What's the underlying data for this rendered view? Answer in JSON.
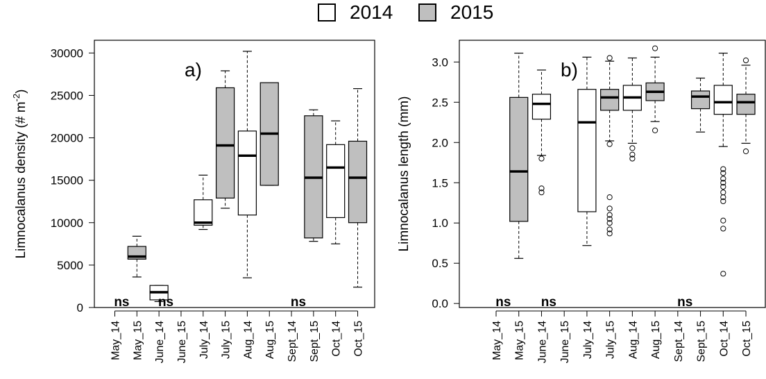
{
  "legend": {
    "items": [
      {
        "label": "2014",
        "color": "#ffffff"
      },
      {
        "label": "2015",
        "color": "#bfbfbf"
      }
    ]
  },
  "chart_data": [
    {
      "type": "box",
      "panel_label": "a)",
      "ylabel": "Limnocalanus density (# m",
      "ylabel_superscript": "-2",
      "ylabel_suffix": ")",
      "ylim": [
        0,
        31500
      ],
      "yticks": [
        0,
        5000,
        10000,
        15000,
        20000,
        25000,
        30000
      ],
      "categories": [
        "May_14",
        "May_15",
        "June_14",
        "June_15",
        "July_14",
        "July_15",
        "Aug_14",
        "Aug_15",
        "Sept_14",
        "Sept_15",
        "Oct_14",
        "Oct_15"
      ],
      "boxes": [
        {
          "category": "May_15",
          "year": "2015",
          "whisker_low": 3600,
          "q1": 5700,
          "median": 6000,
          "q3": 7200,
          "whisker_high": 8400
        },
        {
          "category": "June_14",
          "year": "2014",
          "whisker_low": 700,
          "q1": 900,
          "median": 1800,
          "q3": 2600,
          "whisker_high": 2600
        },
        {
          "category": "July_14",
          "year": "2014",
          "whisker_low": 9200,
          "q1": 9700,
          "median": 10000,
          "q3": 12700,
          "whisker_high": 15600
        },
        {
          "category": "July_15",
          "year": "2015",
          "whisker_low": 11700,
          "q1": 12900,
          "median": 19100,
          "q3": 25900,
          "whisker_high": 27900
        },
        {
          "category": "Aug_14",
          "year": "2014",
          "whisker_low": 3500,
          "q1": 10900,
          "median": 17900,
          "q3": 20800,
          "whisker_high": 30200
        },
        {
          "category": "Aug_15",
          "year": "2015",
          "whisker_low": 14400,
          "q1": 14400,
          "median": 20500,
          "q3": 26500,
          "whisker_high": 26500
        },
        {
          "category": "Sept_15",
          "year": "2015",
          "whisker_low": 7800,
          "q1": 8200,
          "median": 15300,
          "q3": 22600,
          "whisker_high": 23300
        },
        {
          "category": "Oct_14",
          "year": "2014",
          "whisker_low": 7500,
          "q1": 10600,
          "median": 16500,
          "q3": 19200,
          "whisker_high": 22000
        },
        {
          "category": "Oct_15",
          "year": "2015",
          "whisker_low": 2400,
          "q1": 10000,
          "median": 15300,
          "q3": 19600,
          "whisker_high": 25800
        }
      ],
      "outliers": [],
      "annotations": [
        {
          "text": "ns",
          "between": [
            "May_14",
            "May_15"
          ]
        },
        {
          "text": "ns",
          "between": [
            "June_14",
            "June_15"
          ]
        },
        {
          "text": "ns",
          "between": [
            "Sept_14",
            "Sept_15"
          ]
        }
      ]
    },
    {
      "type": "box",
      "panel_label": "b)",
      "ylabel": "Limnocalanus length (mm)",
      "ylim": [
        -0.05,
        3.27
      ],
      "yticks": [
        "0.0",
        "0.5",
        "1.0",
        "1.5",
        "2.0",
        "2.5",
        "3.0"
      ],
      "categories": [
        "May_14",
        "May_15",
        "June_14",
        "June_15",
        "July_14",
        "July_15",
        "Aug_14",
        "Aug_15",
        "Sept_14",
        "Sept_15",
        "Oct_14",
        "Oct_15"
      ],
      "boxes": [
        {
          "category": "May_15",
          "year": "2015",
          "whisker_low": 0.56,
          "q1": 1.02,
          "median": 1.64,
          "q3": 2.56,
          "whisker_high": 3.11
        },
        {
          "category": "June_14",
          "year": "2014",
          "whisker_low": 1.84,
          "q1": 2.29,
          "median": 2.48,
          "q3": 2.6,
          "whisker_high": 2.9
        },
        {
          "category": "July_14",
          "year": "2014",
          "whisker_low": 0.72,
          "q1": 1.14,
          "median": 2.25,
          "q3": 2.66,
          "whisker_high": 3.06
        },
        {
          "category": "July_15",
          "year": "2015",
          "whisker_low": 2.02,
          "q1": 2.4,
          "median": 2.56,
          "q3": 2.66,
          "whisker_high": 3.01
        },
        {
          "category": "Aug_14",
          "year": "2014",
          "whisker_low": 1.99,
          "q1": 2.4,
          "median": 2.56,
          "q3": 2.71,
          "whisker_high": 3.05
        },
        {
          "category": "Aug_15",
          "year": "2015",
          "whisker_low": 2.26,
          "q1": 2.52,
          "median": 2.63,
          "q3": 2.74,
          "whisker_high": 3.06
        },
        {
          "category": "Sept_15",
          "year": "2015",
          "whisker_low": 2.13,
          "q1": 2.42,
          "median": 2.57,
          "q3": 2.64,
          "whisker_high": 2.8
        },
        {
          "category": "Oct_14",
          "year": "2014",
          "whisker_low": 1.95,
          "q1": 2.35,
          "median": 2.5,
          "q3": 2.71,
          "whisker_high": 3.11
        },
        {
          "category": "Oct_15",
          "year": "2015",
          "whisker_low": 1.99,
          "q1": 2.35,
          "median": 2.5,
          "q3": 2.6,
          "whisker_high": 2.96
        }
      ],
      "outliers": [
        {
          "category": "June_14",
          "values": [
            1.8,
            1.43,
            1.38
          ]
        },
        {
          "category": "July_15",
          "values": [
            3.05,
            1.98,
            1.32,
            1.18,
            1.1,
            1.05,
            1.0,
            0.92,
            0.87
          ]
        },
        {
          "category": "Aug_14",
          "values": [
            1.93,
            1.85,
            1.8
          ]
        },
        {
          "category": "Aug_15",
          "values": [
            3.17,
            2.15
          ]
        },
        {
          "category": "Oct_14",
          "values": [
            1.67,
            1.62,
            1.55,
            1.5,
            1.45,
            1.38,
            1.32,
            1.27,
            1.03,
            0.93,
            0.37
          ]
        },
        {
          "category": "Oct_15",
          "values": [
            3.02,
            1.89
          ]
        }
      ],
      "annotations": [
        {
          "text": "ns",
          "between": [
            "May_14",
            "May_15"
          ]
        },
        {
          "text": "ns",
          "between": [
            "June_14",
            "June_15"
          ]
        },
        {
          "text": "ns",
          "between": [
            "Sept_14",
            "Sept_15"
          ]
        }
      ]
    }
  ]
}
